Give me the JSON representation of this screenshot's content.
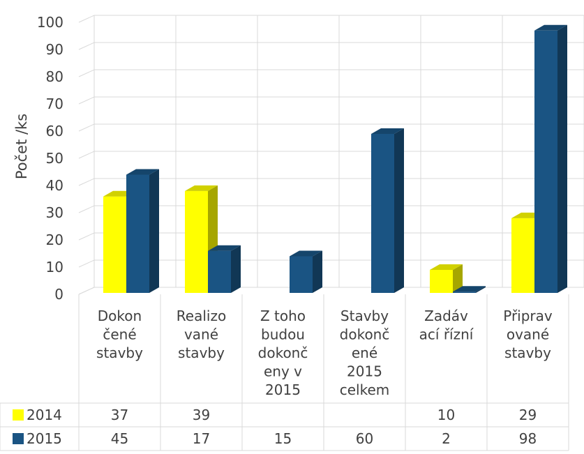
{
  "chart_data": {
    "type": "bar",
    "ylabel": "Počet /ks",
    "ylim": [
      0,
      100
    ],
    "yticks": [
      "0",
      "10",
      "20",
      "30",
      "40",
      "50",
      "60",
      "70",
      "80",
      "90",
      "100"
    ],
    "categories": [
      [
        "Dokon",
        "čené",
        "stavby"
      ],
      [
        "Realizo",
        "vané",
        "stavby"
      ],
      [
        "Z toho",
        "budou",
        "dokonč",
        "eny v",
        "2015"
      ],
      [
        "Stavby",
        "dokonč",
        "ené",
        "2015",
        "celkem"
      ],
      [
        "Zadáv",
        "ací řízní"
      ],
      [
        "Připrav",
        "ované",
        "stavby"
      ]
    ],
    "series": [
      {
        "name": "2014",
        "color": "#ffff00",
        "values": [
          37,
          39,
          null,
          null,
          10,
          29
        ],
        "labels": [
          "37",
          "39",
          "",
          "",
          "10",
          "29"
        ]
      },
      {
        "name": "2015",
        "color": "#1a5483",
        "values": [
          45,
          17,
          15,
          60,
          2,
          98
        ],
        "labels": [
          "45",
          "17",
          "15",
          "60",
          "2",
          "98"
        ]
      }
    ],
    "grid": true,
    "legend": "data-table",
    "style": "3d-column"
  }
}
